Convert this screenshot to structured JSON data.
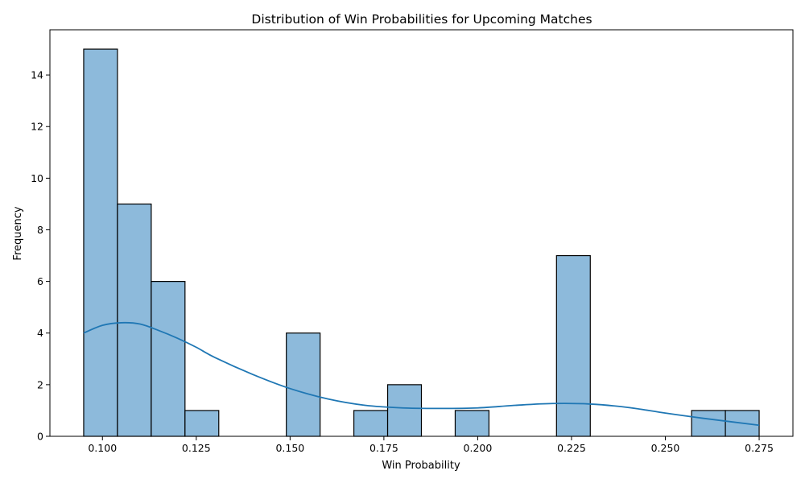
{
  "chart_data": {
    "type": "bar",
    "subtype": "histogram",
    "title": "Distribution of Win Probabilities for Upcoming Matches",
    "xlabel": "Win Probability",
    "ylabel": "Frequency",
    "xlim": [
      0.086,
      0.284
    ],
    "ylim": [
      0,
      15.75
    ],
    "xticks": [
      0.1,
      0.125,
      0.15,
      0.175,
      0.2,
      0.225,
      0.25,
      0.275
    ],
    "xtick_labels": [
      "0.100",
      "0.125",
      "0.150",
      "0.175",
      "0.200",
      "0.225",
      "0.250",
      "0.275"
    ],
    "yticks": [
      0,
      2,
      4,
      6,
      8,
      10,
      12,
      14
    ],
    "ytick_labels": [
      "0",
      "2",
      "4",
      "6",
      "8",
      "10",
      "12",
      "14"
    ],
    "bin_start": 0.095,
    "bin_width": 0.009,
    "counts": [
      15,
      9,
      6,
      1,
      0,
      0,
      4,
      0,
      1,
      2,
      0,
      1,
      0,
      0,
      7,
      0,
      0,
      0,
      1,
      1
    ],
    "kde": {
      "x": [
        0.095,
        0.1,
        0.105,
        0.11,
        0.115,
        0.12,
        0.125,
        0.13,
        0.14,
        0.15,
        0.16,
        0.17,
        0.18,
        0.19,
        0.2,
        0.21,
        0.22,
        0.23,
        0.24,
        0.25,
        0.26,
        0.275
      ],
      "y": [
        4.0,
        4.3,
        4.4,
        4.35,
        4.1,
        3.8,
        3.45,
        3.05,
        2.4,
        1.85,
        1.45,
        1.2,
        1.1,
        1.08,
        1.1,
        1.2,
        1.27,
        1.25,
        1.12,
        0.9,
        0.7,
        0.43
      ]
    },
    "colors": {
      "bar_fill": "#8dbadb",
      "bar_edge": "#000000",
      "kde_line": "#1f77b4"
    },
    "grid": false,
    "legend": "none"
  }
}
